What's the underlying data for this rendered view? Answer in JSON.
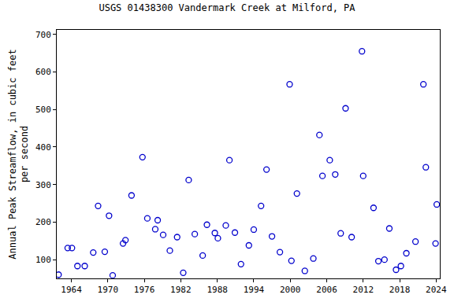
{
  "chart_data": {
    "type": "scatter",
    "title": "USGS 01438300 Vandermark Creek at Milford, PA",
    "y_label": "Annual Peak Streamflow, in cubic feet\nper second",
    "x": [
      1961.9,
      1963.4,
      1964.1,
      1965.0,
      1966.2,
      1967.6,
      1968.4,
      1969.5,
      1970.2,
      1970.8,
      1972.5,
      1972.9,
      1973.9,
      1975.7,
      1976.5,
      1977.8,
      1978.2,
      1979.1,
      1980.2,
      1981.4,
      1982.4,
      1983.3,
      1984.3,
      1985.6,
      1986.3,
      1987.6,
      1988.1,
      1989.4,
      1990.0,
      1990.9,
      1991.9,
      1993.2,
      1994.0,
      1995.2,
      1996.1,
      1997.0,
      1998.3,
      1999.9,
      2000.2,
      2001.1,
      2002.4,
      2003.8,
      2004.8,
      2005.3,
      2006.5,
      2007.4,
      2008.3,
      2009.1,
      2010.1,
      2011.8,
      2012.0,
      2013.7,
      2014.5,
      2015.5,
      2016.3,
      2017.4,
      2018.2,
      2019.1,
      2020.6,
      2021.9,
      2022.3,
      2023.9,
      2024.1
    ],
    "values": [
      60,
      131,
      131,
      83,
      83,
      119,
      243,
      121,
      217,
      58,
      143,
      152,
      271,
      373,
      210,
      181,
      205,
      166,
      124,
      160,
      65,
      312,
      168,
      111,
      193,
      171,
      157,
      191,
      365,
      172,
      88,
      138,
      180,
      243,
      340,
      162,
      120,
      567,
      97,
      276,
      70,
      103,
      432,
      323,
      365,
      327,
      170,
      503,
      160,
      655,
      323,
      238,
      96,
      100,
      183,
      73,
      83,
      117,
      148,
      567,
      346,
      143,
      247
    ],
    "color": "#0000cc",
    "marker": "circle-open",
    "xlim": [
      1961.6,
      2024.6
    ],
    "xticks": [
      1964,
      1970,
      1976,
      1982,
      1988,
      1994,
      2000,
      2006,
      2012,
      2018,
      2024
    ],
    "ylim": [
      50,
      712
    ],
    "yticks": [
      100,
      200,
      300,
      400,
      500,
      600,
      700
    ],
    "grid": false
  }
}
